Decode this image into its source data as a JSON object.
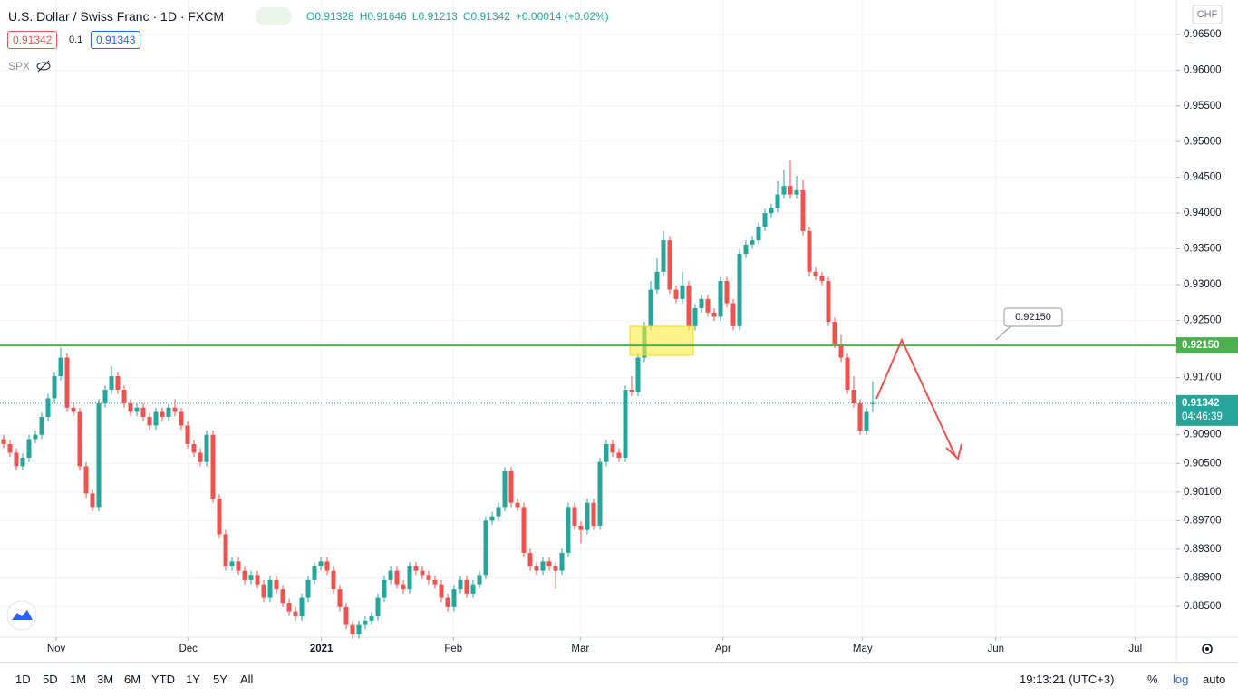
{
  "chart_data": {
    "type": "candlestick",
    "title": "U.S. Dollar / Swiss Franc · 1D · FXCM",
    "legend": [
      "O0.91328",
      "H0.91646",
      "L0.91213",
      "C0.91342",
      "+0.00014 (+0.02%)"
    ],
    "currency": "CHF",
    "up_color": "#26a69a",
    "down_color": "#ef5350",
    "grid": true,
    "open": [
      0.9084,
      0.9077,
      0.9065,
      0.9046,
      0.9058,
      0.9084,
      0.909,
      0.9115,
      0.9141,
      0.9172,
      0.9198,
      0.9128,
      0.9122,
      0.9046,
      0.9008,
      0.8989,
      0.9134,
      0.9153,
      0.9172,
      0.9153,
      0.9134,
      0.9122,
      0.9128,
      0.9115,
      0.9103,
      0.9122,
      0.9115,
      0.9128,
      0.9122,
      0.9103,
      0.9077,
      0.9065,
      0.9052,
      0.909,
      0.9001,
      0.8951,
      0.8906,
      0.8913,
      0.89,
      0.8887,
      0.8894,
      0.8881,
      0.8862,
      0.8887,
      0.8874,
      0.8855,
      0.8843,
      0.8836,
      0.8862,
      0.8887,
      0.8906,
      0.8913,
      0.89,
      0.8874,
      0.8849,
      0.8824,
      0.8811,
      0.8824,
      0.883,
      0.8836,
      0.8862,
      0.8887,
      0.89,
      0.8881,
      0.8874,
      0.8906,
      0.89,
      0.8894,
      0.8887,
      0.8881,
      0.8862,
      0.8849,
      0.8874,
      0.8887,
      0.8868,
      0.8881,
      0.8894,
      0.897,
      0.8976,
      0.8989,
      0.9039,
      0.8995,
      0.8989,
      0.8925,
      0.8906,
      0.89,
      0.8913,
      0.8906,
      0.89,
      0.8925,
      0.8989,
      0.8963,
      0.8957,
      0.8995,
      0.8963,
      0.9052,
      0.9077,
      0.9065,
      0.9058,
      0.9153,
      0.915,
      0.9198,
      0.9242,
      0.9293,
      0.9318,
      0.9362,
      0.9293,
      0.928,
      0.9299,
      0.9242,
      0.9267,
      0.928,
      0.9261,
      0.9255,
      0.9305,
      0.9274,
      0.9242,
      0.9343,
      0.9356,
      0.9362,
      0.9381,
      0.94,
      0.9407,
      0.9426,
      0.9438,
      0.9426,
      0.9432,
      0.9375,
      0.9318,
      0.9312,
      0.9305,
      0.9248,
      0.9217,
      0.9198,
      0.9153,
      0.9134,
      0.9096,
      0.91328
    ],
    "high": [
      0.909,
      0.9083,
      0.9071,
      0.9064,
      0.909,
      0.9096,
      0.9121,
      0.9147,
      0.9178,
      0.9212,
      0.9204,
      0.9134,
      0.9128,
      0.9052,
      0.9014,
      0.914,
      0.9159,
      0.9186,
      0.9178,
      0.9159,
      0.914,
      0.9134,
      0.9134,
      0.9121,
      0.9128,
      0.9128,
      0.9134,
      0.914,
      0.9128,
      0.9109,
      0.9083,
      0.9071,
      0.9096,
      0.9096,
      0.9007,
      0.8957,
      0.8919,
      0.8919,
      0.8906,
      0.89,
      0.89,
      0.8887,
      0.8893,
      0.8893,
      0.888,
      0.8861,
      0.8849,
      0.8868,
      0.8893,
      0.8912,
      0.8919,
      0.8919,
      0.8906,
      0.888,
      0.8855,
      0.883,
      0.883,
      0.8836,
      0.8842,
      0.8868,
      0.8893,
      0.8906,
      0.8906,
      0.8887,
      0.8912,
      0.8912,
      0.8906,
      0.89,
      0.8893,
      0.8887,
      0.8868,
      0.888,
      0.8893,
      0.8893,
      0.8887,
      0.89,
      0.8976,
      0.8982,
      0.8995,
      0.9045,
      0.9045,
      0.9001,
      0.8995,
      0.8931,
      0.8912,
      0.8919,
      0.8919,
      0.8912,
      0.8931,
      0.8995,
      0.8995,
      0.8969,
      0.9001,
      0.9001,
      0.9058,
      0.9083,
      0.9083,
      0.9071,
      0.9159,
      0.9172,
      0.9204,
      0.9248,
      0.9305,
      0.9337,
      0.9375,
      0.9368,
      0.9299,
      0.9318,
      0.9305,
      0.9273,
      0.9286,
      0.9286,
      0.9267,
      0.9311,
      0.9311,
      0.928,
      0.9349,
      0.9362,
      0.9368,
      0.9387,
      0.9406,
      0.9413,
      0.9445,
      0.946,
      0.9474,
      0.9452,
      0.9446,
      0.9381,
      0.9324,
      0.9318,
      0.9311,
      0.9254,
      0.923,
      0.9204,
      0.9172,
      0.914,
      0.9128,
      0.91646
    ],
    "low": [
      0.9071,
      0.9059,
      0.904,
      0.904,
      0.9052,
      0.9078,
      0.9084,
      0.9109,
      0.9135,
      0.9166,
      0.9122,
      0.9116,
      0.904,
      0.9002,
      0.8983,
      0.8983,
      0.9128,
      0.9147,
      0.9147,
      0.9128,
      0.9116,
      0.9116,
      0.9109,
      0.9097,
      0.9097,
      0.9109,
      0.9109,
      0.9116,
      0.9097,
      0.9071,
      0.9059,
      0.9046,
      0.9046,
      0.8995,
      0.8945,
      0.89,
      0.89,
      0.8894,
      0.8881,
      0.8881,
      0.8875,
      0.8856,
      0.8856,
      0.8868,
      0.8849,
      0.8837,
      0.883,
      0.883,
      0.8856,
      0.8881,
      0.89,
      0.8894,
      0.8868,
      0.8843,
      0.8818,
      0.8805,
      0.8805,
      0.8818,
      0.8824,
      0.883,
      0.8856,
      0.8881,
      0.8875,
      0.8868,
      0.8868,
      0.8894,
      0.8888,
      0.8881,
      0.8875,
      0.8856,
      0.8843,
      0.8843,
      0.8868,
      0.8862,
      0.8862,
      0.8875,
      0.8888,
      0.8964,
      0.897,
      0.8983,
      0.8989,
      0.8983,
      0.8919,
      0.89,
      0.8894,
      0.8894,
      0.89,
      0.8875,
      0.8894,
      0.8919,
      0.8957,
      0.8938,
      0.8951,
      0.8957,
      0.8957,
      0.9046,
      0.9059,
      0.9052,
      0.9052,
      0.9144,
      0.9144,
      0.9192,
      0.9236,
      0.9287,
      0.9312,
      0.9287,
      0.9274,
      0.9274,
      0.9236,
      0.9236,
      0.9261,
      0.9255,
      0.9249,
      0.9249,
      0.9268,
      0.9236,
      0.9236,
      0.9337,
      0.935,
      0.9356,
      0.9375,
      0.9394,
      0.9401,
      0.942,
      0.942,
      0.942,
      0.9369,
      0.9312,
      0.9306,
      0.9299,
      0.9242,
      0.9211,
      0.9192,
      0.9147,
      0.9128,
      0.909,
      0.909,
      0.91213
    ],
    "close": [
      0.9077,
      0.9065,
      0.9046,
      0.9058,
      0.9084,
      0.909,
      0.9115,
      0.9141,
      0.9172,
      0.9198,
      0.9128,
      0.9122,
      0.9046,
      0.9008,
      0.8989,
      0.9134,
      0.9153,
      0.9172,
      0.9153,
      0.9134,
      0.9122,
      0.9128,
      0.9115,
      0.9103,
      0.9122,
      0.9115,
      0.9128,
      0.9122,
      0.9103,
      0.9077,
      0.9065,
      0.9052,
      0.909,
      0.9001,
      0.8951,
      0.8906,
      0.8913,
      0.89,
      0.8887,
      0.8894,
      0.8881,
      0.8862,
      0.8887,
      0.8874,
      0.8855,
      0.8843,
      0.8836,
      0.8862,
      0.8887,
      0.8906,
      0.8913,
      0.89,
      0.8874,
      0.8849,
      0.8824,
      0.8811,
      0.8824,
      0.883,
      0.8836,
      0.8862,
      0.8887,
      0.89,
      0.8881,
      0.8874,
      0.8906,
      0.89,
      0.8894,
      0.8887,
      0.8881,
      0.8862,
      0.8849,
      0.8874,
      0.8887,
      0.8868,
      0.8881,
      0.8894,
      0.897,
      0.8976,
      0.8989,
      0.9039,
      0.8995,
      0.8989,
      0.8925,
      0.8906,
      0.89,
      0.8913,
      0.8906,
      0.89,
      0.8925,
      0.8989,
      0.8963,
      0.8957,
      0.8995,
      0.8963,
      0.9052,
      0.9077,
      0.9065,
      0.9058,
      0.9153,
      0.915,
      0.9198,
      0.9242,
      0.9293,
      0.9318,
      0.9362,
      0.9293,
      0.928,
      0.9299,
      0.9242,
      0.9267,
      0.928,
      0.9261,
      0.9255,
      0.9305,
      0.9274,
      0.9242,
      0.9343,
      0.9356,
      0.9362,
      0.9381,
      0.94,
      0.9407,
      0.9426,
      0.9438,
      0.9426,
      0.9432,
      0.9375,
      0.9318,
      0.9312,
      0.9305,
      0.9248,
      0.9217,
      0.9198,
      0.9153,
      0.9134,
      0.9096,
      0.9122,
      0.91342
    ],
    "xlim": [
      -0.57,
      184.86
    ],
    "xticks": [
      {
        "value": 8.3,
        "label": "Nov"
      },
      {
        "value": 29.1,
        "label": "Dec"
      },
      {
        "value": 50.1,
        "label": "2021"
      },
      {
        "value": 70.9,
        "label": "Feb"
      },
      {
        "value": 90.9,
        "label": "Mar"
      },
      {
        "value": 113.4,
        "label": "Apr"
      },
      {
        "value": 135.4,
        "label": "May"
      },
      {
        "value": 156.4,
        "label": "Jun"
      },
      {
        "value": 178.4,
        "label": "Jul"
      }
    ],
    "ylim": [
      0.8807,
      0.9698
    ],
    "yticks": [
      {
        "value": 0.965,
        "label": "0.96500"
      },
      {
        "value": 0.96,
        "label": "0.96000"
      },
      {
        "value": 0.955,
        "label": "0.95500"
      },
      {
        "value": 0.95,
        "label": "0.95000"
      },
      {
        "value": 0.945,
        "label": "0.94500"
      },
      {
        "value": 0.94,
        "label": "0.94000"
      },
      {
        "value": 0.935,
        "label": "0.93500"
      },
      {
        "value": 0.93,
        "label": "0.93000"
      },
      {
        "value": 0.925,
        "label": "0.92500"
      },
      {
        "value": 0.917,
        "label": "0.91700"
      },
      {
        "value": 0.909,
        "label": "0.90900"
      },
      {
        "value": 0.905,
        "label": "0.90500"
      },
      {
        "value": 0.901,
        "label": "0.90100"
      },
      {
        "value": 0.897,
        "label": "0.89700"
      },
      {
        "value": 0.893,
        "label": "0.89300"
      },
      {
        "value": 0.889,
        "label": "0.88900"
      },
      {
        "value": 0.885,
        "label": "0.88500"
      }
    ],
    "hline": {
      "value": 0.9215,
      "label": "0.92150",
      "color": "#4caf50"
    },
    "last_price": {
      "value": 0.91342,
      "countdown": "04:46:39",
      "color": "#26a69a"
    }
  },
  "trade": {
    "sell": "0.91342",
    "spread": "0.1",
    "buy": "0.91343"
  },
  "compare": "SPX",
  "toolbar": {
    "ranges": [
      "1D",
      "5D",
      "1M",
      "3M",
      "6M",
      "YTD",
      "1Y",
      "5Y",
      "All"
    ],
    "clock": "19:13:21 (UTC+3)",
    "options": [
      "%",
      "log",
      "auto"
    ]
  }
}
